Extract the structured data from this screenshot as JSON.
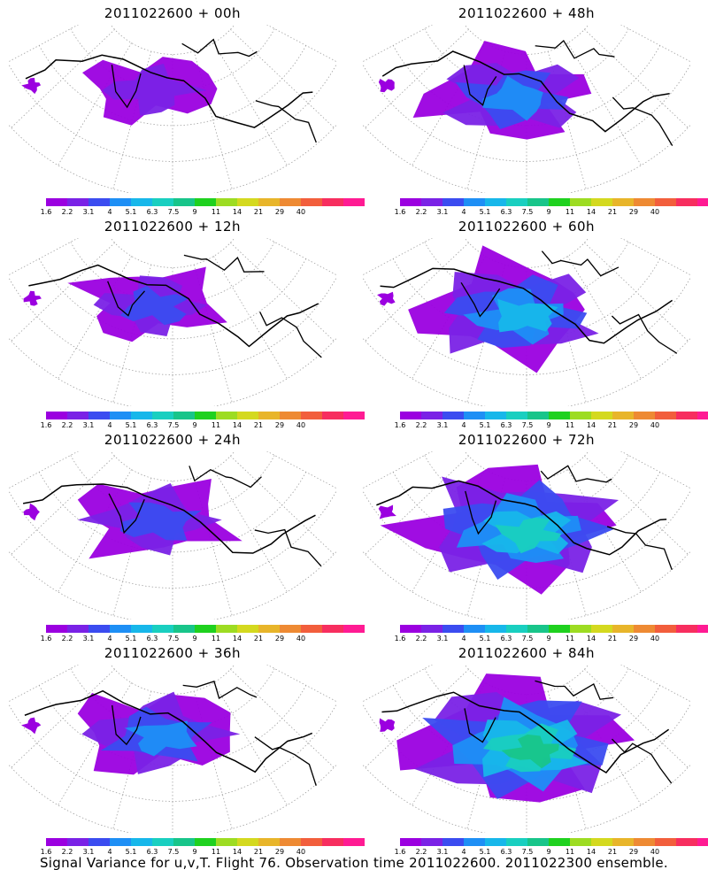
{
  "panels": [
    {
      "title": "2011022600 + 00h",
      "level": 0.05
    },
    {
      "title": "2011022600 + 48h",
      "level": 0.35
    },
    {
      "title": "2011022600 + 12h",
      "level": 0.12
    },
    {
      "title": "2011022600 + 60h",
      "level": 0.5
    },
    {
      "title": "2011022600 + 24h",
      "level": 0.22
    },
    {
      "title": "2011022600 + 72h",
      "level": 0.65
    },
    {
      "title": "2011022600 + 36h",
      "level": 0.28
    },
    {
      "title": "2011022600 + 84h",
      "level": 0.75
    }
  ],
  "colorbar": {
    "colors": [
      "#9b00e0",
      "#7a22e6",
      "#3b4cf0",
      "#1e8ff5",
      "#17b7ea",
      "#19cfc0",
      "#18c58a",
      "#1fd11f",
      "#9ddc22",
      "#d4d91f",
      "#e8b52a",
      "#ee8a33",
      "#f25e3c",
      "#f72e5f",
      "#ff1b93"
    ],
    "labels": [
      "1.6",
      "2.2",
      "3.1",
      "4",
      "5.1",
      "6.3",
      "7.5",
      "9",
      "11",
      "14",
      "21",
      "29",
      "40"
    ]
  },
  "caption": "Signal Variance for u,v,T. Flight 76. Observation time 2011022600. 2011022300 ensemble."
}
